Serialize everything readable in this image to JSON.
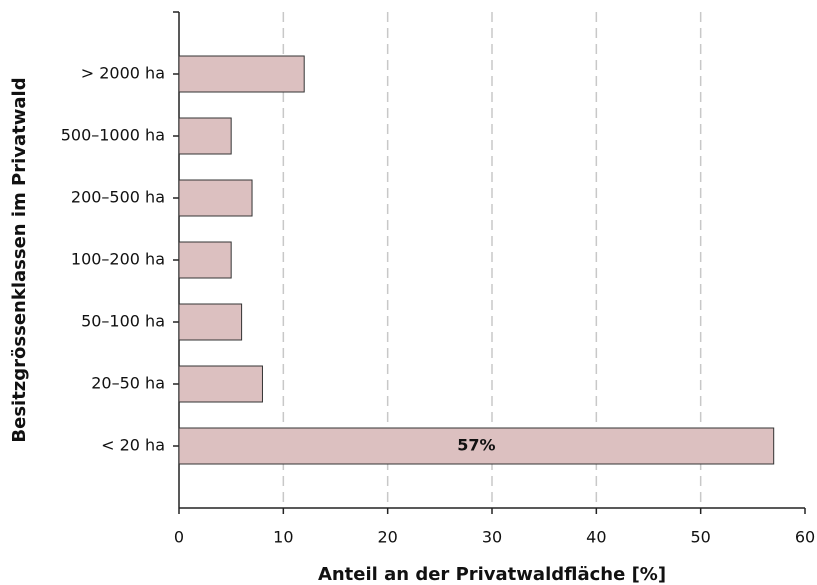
{
  "chart_data": {
    "type": "barh",
    "xlabel": "Anteil an der Privatwaldfläche [%]",
    "ylabel": "Besitzgrössenklassen im Privatwald",
    "categories": [
      "> 2000 ha",
      "500–1000 ha",
      "200–500 ha",
      "100–200 ha",
      "50–100 ha",
      "20–50 ha",
      "< 20 ha"
    ],
    "values": [
      12,
      5,
      7,
      5,
      6,
      8,
      57
    ],
    "value_labels": [
      null,
      null,
      null,
      null,
      null,
      null,
      "57%"
    ],
    "color": "#dcc0c0",
    "xlim": [
      0,
      60
    ],
    "xticks": [
      0,
      10,
      20,
      30,
      40,
      50,
      60
    ],
    "grid": true
  }
}
